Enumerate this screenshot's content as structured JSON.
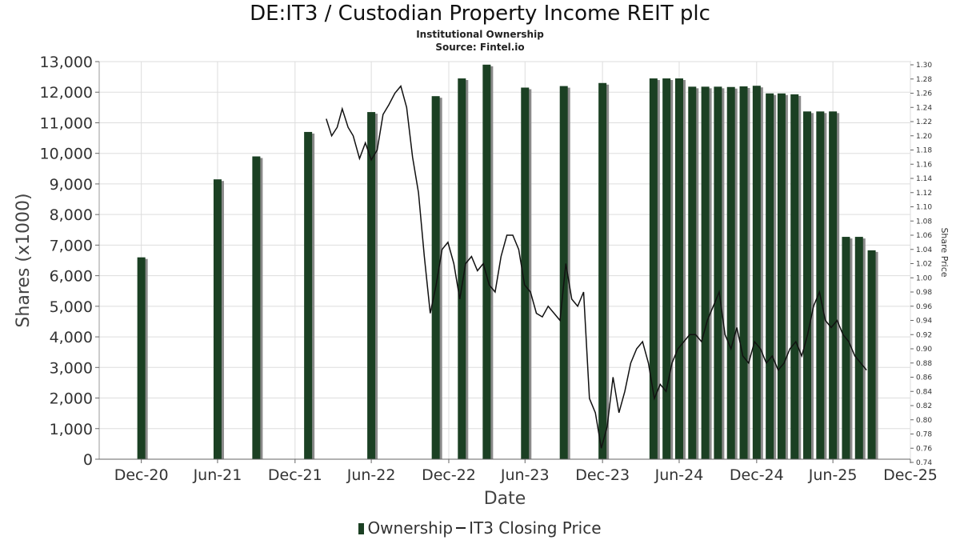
{
  "chart_data": {
    "type": "bar",
    "title": "DE:IT3 / Custodian Property Income REIT plc",
    "subtitles": [
      "Institutional Ownership",
      "Source: Fintel.io"
    ],
    "xlabel": "Date",
    "ylabel": "Shares (x1000)",
    "y2label": "Share Price",
    "ylim": [
      0,
      13000
    ],
    "y2lim": [
      0.74,
      1.3
    ],
    "x_ticks": [
      "Dec-20",
      "Jun-21",
      "Dec-21",
      "Jun-22",
      "Dec-22",
      "Jun-23",
      "Dec-23",
      "Jun-24",
      "Dec-24",
      "Jun-25",
      "Dec-25"
    ],
    "y_ticks": [
      0,
      1000,
      2000,
      3000,
      4000,
      5000,
      6000,
      7000,
      8000,
      9000,
      10000,
      11000,
      12000,
      13000
    ],
    "y_tick_labels": [
      "0",
      "1,000",
      "2,000",
      "3,000",
      "4,000",
      "5,000",
      "6,000",
      "7,000",
      "8,000",
      "9,000",
      "10,000",
      "11,000",
      "12,000",
      "13,000"
    ],
    "y2_ticks": [
      "0.74",
      "0.76",
      "0.78",
      "0.80",
      "0.82",
      "0.84",
      "0.86",
      "0.88",
      "0.90",
      "0.92",
      "0.94",
      "0.96",
      "0.98",
      "1.00",
      "1.02",
      "1.04",
      "1.06",
      "1.08",
      "1.10",
      "1.12",
      "1.14",
      "1.16",
      "1.18",
      "1.20",
      "1.22",
      "1.24",
      "1.26",
      "1.28",
      "1.30"
    ],
    "grid": true,
    "legend_position": "bottom",
    "colors": {
      "bar": "#1b4023",
      "bar_shadow": "#8a8a8a",
      "line": "#111111",
      "grid": "#dddddd"
    },
    "series": [
      {
        "name": "Ownership",
        "type": "bar",
        "x": [
          "2020-12-31",
          "2021-06-30",
          "2021-09-30",
          "2022-01-31",
          "2022-06-30",
          "2022-11-30",
          "2023-01-31",
          "2023-03-31",
          "2023-06-30",
          "2023-09-30",
          "2023-12-31",
          "2024-04-30",
          "2024-05-31",
          "2024-06-30",
          "2024-07-31",
          "2024-08-31",
          "2024-09-30",
          "2024-10-31",
          "2024-11-30",
          "2024-12-31",
          "2025-01-31",
          "2025-02-28",
          "2025-03-31",
          "2025-04-30",
          "2025-05-31",
          "2025-06-30",
          "2025-07-31",
          "2025-08-31",
          "2025-09-30"
        ],
        "values": [
          6600,
          9150,
          9900,
          10700,
          11350,
          11870,
          12450,
          12900,
          12150,
          12200,
          12300,
          12450,
          12450,
          12450,
          12180,
          12180,
          12180,
          12170,
          12190,
          12210,
          11960,
          11960,
          11930,
          11370,
          11370,
          11370,
          7270,
          7270,
          6830
        ]
      },
      {
        "name": "IT3 Closing Price",
        "type": "line",
        "x": [
          "2022-03-15",
          "2022-03-28",
          "2022-04-10",
          "2022-04-22",
          "2022-05-06",
          "2022-05-18",
          "2022-06-02",
          "2022-06-16",
          "2022-06-30",
          "2022-07-14",
          "2022-07-28",
          "2022-08-11",
          "2022-08-25",
          "2022-09-08",
          "2022-09-22",
          "2022-10-06",
          "2022-10-20",
          "2022-11-03",
          "2022-11-17",
          "2022-12-01",
          "2022-12-15",
          "2022-12-29",
          "2023-01-12",
          "2023-01-26",
          "2023-02-09",
          "2023-02-23",
          "2023-03-09",
          "2023-03-23",
          "2023-04-06",
          "2023-04-20",
          "2023-05-04",
          "2023-05-18",
          "2023-06-01",
          "2023-06-15",
          "2023-06-29",
          "2023-07-13",
          "2023-07-27",
          "2023-08-10",
          "2023-08-24",
          "2023-09-07",
          "2023-09-21",
          "2023-10-05",
          "2023-10-19",
          "2023-11-02",
          "2023-11-16",
          "2023-11-30",
          "2023-12-14",
          "2023-12-28",
          "2024-01-11",
          "2024-01-25",
          "2024-02-08",
          "2024-02-22",
          "2024-03-07",
          "2024-03-21",
          "2024-04-04",
          "2024-04-18",
          "2024-05-02",
          "2024-05-16",
          "2024-05-30",
          "2024-06-13",
          "2024-06-27",
          "2024-07-11",
          "2024-07-25",
          "2024-08-08",
          "2024-08-22",
          "2024-09-05",
          "2024-09-19",
          "2024-10-03",
          "2024-10-17",
          "2024-10-31",
          "2024-11-14",
          "2024-11-28",
          "2024-12-12",
          "2024-12-26",
          "2025-01-09",
          "2025-01-23",
          "2025-02-06",
          "2025-02-20",
          "2025-03-06",
          "2025-03-20",
          "2025-04-03",
          "2025-04-17",
          "2025-05-01",
          "2025-05-15",
          "2025-05-29",
          "2025-06-12",
          "2025-06-26",
          "2025-07-10",
          "2025-07-24",
          "2025-08-07",
          "2025-08-21",
          "2025-09-04",
          "2025-09-18"
        ],
        "values": [
          1.224,
          1.2,
          1.212,
          1.238,
          1.212,
          1.2,
          1.168,
          1.19,
          1.166,
          1.18,
          1.23,
          1.244,
          1.26,
          1.27,
          1.24,
          1.17,
          1.12,
          1.03,
          0.95,
          0.99,
          1.04,
          1.05,
          1.02,
          0.97,
          1.02,
          1.03,
          1.01,
          1.02,
          0.99,
          0.98,
          1.03,
          1.06,
          1.06,
          1.04,
          0.99,
          0.98,
          0.95,
          0.945,
          0.96,
          0.95,
          0.94,
          1.02,
          0.97,
          0.96,
          0.98,
          0.83,
          0.81,
          0.76,
          0.79,
          0.86,
          0.81,
          0.84,
          0.88,
          0.9,
          0.91,
          0.88,
          0.83,
          0.85,
          0.84,
          0.88,
          0.9,
          0.91,
          0.92,
          0.92,
          0.91,
          0.94,
          0.96,
          0.98,
          0.92,
          0.9,
          0.93,
          0.89,
          0.88,
          0.91,
          0.9,
          0.88,
          0.89,
          0.87,
          0.88,
          0.9,
          0.91,
          0.89,
          0.92,
          0.96,
          0.98,
          0.94,
          0.93,
          0.94,
          0.92,
          0.91,
          0.89,
          0.88,
          0.87
        ]
      }
    ]
  },
  "legend": {
    "ownership_label": "Ownership",
    "price_label": "IT3 Closing Price"
  }
}
